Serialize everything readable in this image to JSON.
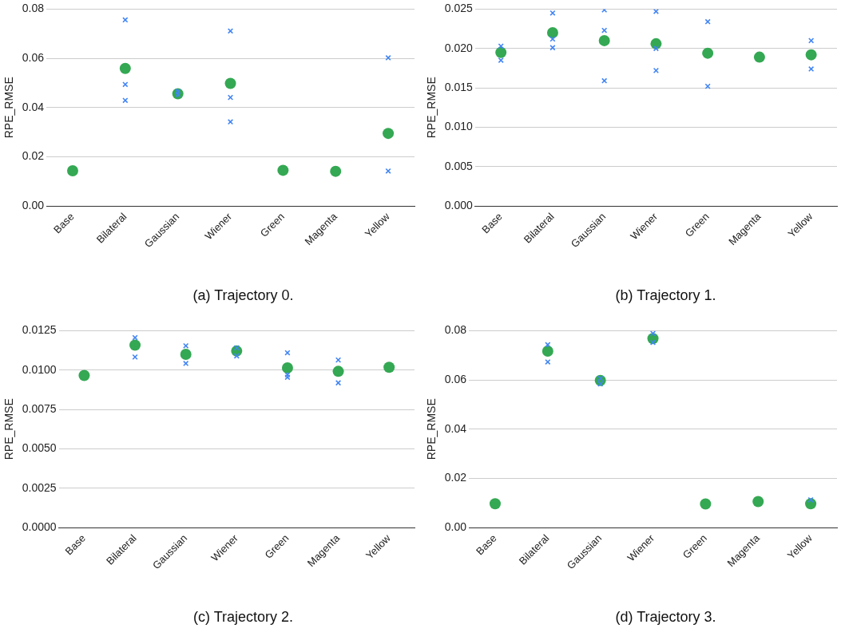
{
  "chart_data": [
    {
      "type": "scatter",
      "ylabel": "RPE_RMSE",
      "categories": [
        "Base",
        "Bilateral",
        "Gaussian",
        "Wiener",
        "Green",
        "Magenta",
        "Yellow"
      ],
      "ylim": [
        0,
        0.08
      ],
      "yticks": [
        {
          "value": 0,
          "label": "0.00"
        },
        {
          "value": 0.02,
          "label": "0.02"
        },
        {
          "value": 0.04,
          "label": "0.04"
        },
        {
          "value": 0.06,
          "label": "0.06"
        },
        {
          "value": 0.08,
          "label": "0.08"
        }
      ],
      "grid": "y",
      "annotations": [
        "(a) Trajectory 0."
      ],
      "series": [
        {
          "type": "scatter",
          "marker": "cross",
          "color": "#4285f4",
          "x": [
            "Bilateral",
            "Bilateral",
            "Bilateral",
            "Gaussian",
            "Gaussian",
            "Wiener",
            "Wiener",
            "Wiener",
            "Yellow",
            "Yellow"
          ],
          "values": [
            0.0756,
            0.0494,
            0.0429,
            0.0466,
            0.0452,
            0.0711,
            0.0441,
            0.0342,
            0.0602,
            0.0142
          ]
        },
        {
          "type": "scatter",
          "marker": "circle",
          "color": "#34a853",
          "values": [
            0.0143,
            0.0559,
            0.0456,
            0.0498,
            0.0145,
            0.0141,
            0.0295
          ]
        }
      ]
    },
    {
      "type": "scatter",
      "ylabel": "RPE_RMSE",
      "categories": [
        "Base",
        "Bilateral",
        "Gaussian",
        "Wiener",
        "Green",
        "Magenta",
        "Yellow"
      ],
      "ylim": [
        0,
        0.025
      ],
      "yticks": [
        {
          "value": 0,
          "label": "0.000"
        },
        {
          "value": 0.005,
          "label": "0.005"
        },
        {
          "value": 0.01,
          "label": "0.010"
        },
        {
          "value": 0.015,
          "label": "0.015"
        },
        {
          "value": 0.02,
          "label": "0.020"
        },
        {
          "value": 0.025,
          "label": "0.025"
        }
      ],
      "grid": "y",
      "annotations": [
        "(b) Trajectory 1."
      ],
      "series": [
        {
          "type": "scatter",
          "marker": "cross",
          "color": "#4285f4",
          "x": [
            "Base",
            "Base",
            "Bilateral",
            "Bilateral",
            "Bilateral",
            "Gaussian",
            "Gaussian",
            "Gaussian",
            "Wiener",
            "Wiener",
            "Wiener",
            "Green",
            "Green",
            "Yellow",
            "Yellow"
          ],
          "values": [
            0.0203,
            0.0185,
            0.0245,
            0.0212,
            0.0201,
            0.0249,
            0.0223,
            0.0159,
            0.0247,
            0.02,
            0.0172,
            0.0234,
            0.0152,
            0.021,
            0.0174
          ]
        },
        {
          "type": "scatter",
          "marker": "circle",
          "color": "#34a853",
          "values": [
            0.0195,
            0.022,
            0.021,
            0.0206,
            0.0194,
            0.0189,
            0.0192
          ]
        }
      ]
    },
    {
      "type": "scatter",
      "ylabel": "RPE_RMSE",
      "categories": [
        "Base",
        "Bilateral",
        "Gaussian",
        "Wiener",
        "Green",
        "Magenta",
        "Yellow"
      ],
      "ylim": [
        0,
        0.0125
      ],
      "yticks": [
        {
          "value": 0,
          "label": "0.0000"
        },
        {
          "value": 0.0025,
          "label": "0.0025"
        },
        {
          "value": 0.005,
          "label": "0.0050"
        },
        {
          "value": 0.0075,
          "label": "0.0075"
        },
        {
          "value": 0.01,
          "label": "0.0100"
        },
        {
          "value": 0.0125,
          "label": "0.0125"
        }
      ],
      "grid": "y",
      "annotations": [
        "(c) Trajectory 2."
      ],
      "series": [
        {
          "type": "scatter",
          "marker": "cross",
          "color": "#4285f4",
          "x": [
            "Bilateral",
            "Bilateral",
            "Gaussian",
            "Gaussian",
            "Wiener",
            "Wiener",
            "Green",
            "Green",
            "Green",
            "Magenta",
            "Magenta"
          ],
          "values": [
            0.01206,
            0.01083,
            0.01154,
            0.01042,
            0.01141,
            0.0109,
            0.0111,
            0.0097,
            0.00954,
            0.01064,
            0.00919
          ]
        },
        {
          "type": "scatter",
          "marker": "circle",
          "color": "#34a853",
          "values": [
            0.00966,
            0.01158,
            0.011,
            0.01121,
            0.01014,
            0.00992,
            0.01018
          ]
        }
      ]
    },
    {
      "type": "scatter",
      "ylabel": "RPE_RMSE",
      "categories": [
        "Base",
        "Bilateral",
        "Gaussian",
        "Wiener",
        "Green",
        "Magenta",
        "Yellow"
      ],
      "ylim": [
        0,
        0.08
      ],
      "yticks": [
        {
          "value": 0,
          "label": "0.00"
        },
        {
          "value": 0.02,
          "label": "0.02"
        },
        {
          "value": 0.04,
          "label": "0.04"
        },
        {
          "value": 0.06,
          "label": "0.06"
        },
        {
          "value": 0.08,
          "label": "0.08"
        }
      ],
      "grid": "y",
      "annotations": [
        "(d) Trajectory 3."
      ],
      "series": [
        {
          "type": "scatter",
          "marker": "cross",
          "color": "#4285f4",
          "x": [
            "Bilateral",
            "Bilateral",
            "Gaussian",
            "Gaussian",
            "Wiener",
            "Wiener",
            "Yellow"
          ],
          "values": [
            0.0743,
            0.0673,
            0.0606,
            0.0584,
            0.0789,
            0.0752,
            0.0113
          ]
        },
        {
          "type": "scatter",
          "marker": "circle",
          "color": "#34a853",
          "values": [
            0.0097,
            0.0717,
            0.0598,
            0.0768,
            0.0096,
            0.0106,
            0.0097
          ]
        }
      ]
    }
  ]
}
